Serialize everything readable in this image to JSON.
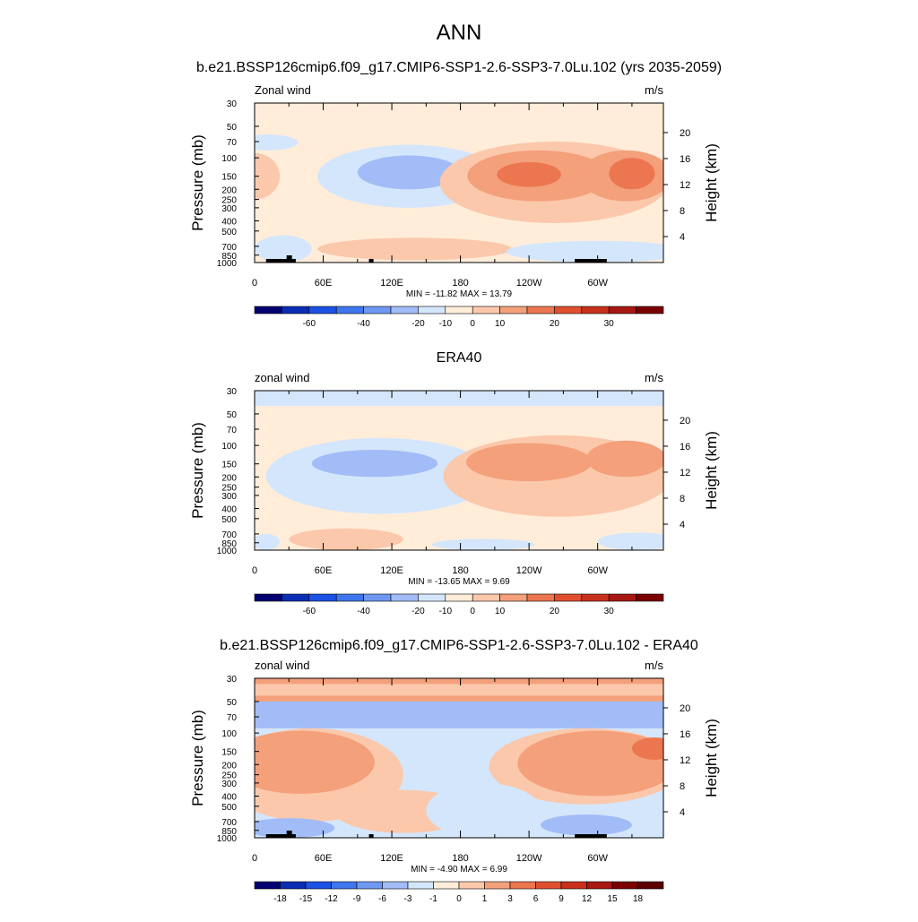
{
  "title": "ANN",
  "chart_data": [
    {
      "type": "heatmap",
      "title": "b.e21.BSSP126cmip6.f09_g17.CMIP6-SSP1-2.6-SSP3-7.0Lu.102 (yrs 2035-2059)",
      "left_label": "Zonal wind",
      "right_label": "m/s",
      "ylabel": "Pressure (mb)",
      "y2label": "Height (km)",
      "y_ticks": [
        "30",
        "50",
        "70",
        "100",
        "150",
        "200",
        "250",
        "300",
        "400",
        "500",
        "700",
        "850",
        "1000"
      ],
      "y2_ticks": [
        "20",
        "16",
        "12",
        "8",
        "4"
      ],
      "x_ticks": [
        "0",
        "60E",
        "120E",
        "180",
        "120W",
        "60W"
      ],
      "xlim": [
        0,
        357.5
      ],
      "stats": "MIN = -11.82  MAX =  13.79",
      "min": -11.82,
      "max": 13.79,
      "colorbar_labels": [
        "-60",
        "-40",
        "-20",
        "-10",
        "0",
        "10",
        "20",
        "30"
      ],
      "colorbar_colors": [
        "#03006f",
        "#0a2db4",
        "#1b52e4",
        "#3e76ee",
        "#6e98f2",
        "#a1bcf6",
        "#d4e6fb",
        "#ffedda",
        "#fbc8ab",
        "#f3a07b",
        "#ec7650",
        "#e0502f",
        "#c8301c",
        "#a81812",
        "#7a0000"
      ]
    },
    {
      "type": "heatmap",
      "title": "ERA40",
      "left_label": "zonal wind",
      "right_label": "m/s",
      "ylabel": "Pressure (mb)",
      "y2label": "Height (km)",
      "y_ticks": [
        "30",
        "50",
        "70",
        "100",
        "150",
        "200",
        "250",
        "300",
        "400",
        "500",
        "700",
        "850",
        "1000"
      ],
      "y2_ticks": [
        "20",
        "16",
        "12",
        "8",
        "4"
      ],
      "x_ticks": [
        "0",
        "60E",
        "120E",
        "180",
        "120W",
        "60W"
      ],
      "xlim": [
        0,
        357.5
      ],
      "stats": "MIN = -13.65  MAX =   9.69",
      "min": -13.65,
      "max": 9.69,
      "colorbar_labels": [
        "-60",
        "-40",
        "-20",
        "-10",
        "0",
        "10",
        "20",
        "30"
      ],
      "colorbar_colors": [
        "#03006f",
        "#0a2db4",
        "#1b52e4",
        "#3e76ee",
        "#6e98f2",
        "#a1bcf6",
        "#d4e6fb",
        "#ffedda",
        "#fbc8ab",
        "#f3a07b",
        "#ec7650",
        "#e0502f",
        "#c8301c",
        "#a81812",
        "#7a0000"
      ]
    },
    {
      "type": "heatmap",
      "title": "b.e21.BSSP126cmip6.f09_g17.CMIP6-SSP1-2.6-SSP3-7.0Lu.102 - ERA40",
      "left_label": "zonal wind",
      "right_label": "m/s",
      "ylabel": "Pressure (mb)",
      "y2label": "Height (km)",
      "y_ticks": [
        "30",
        "50",
        "70",
        "100",
        "150",
        "200",
        "250",
        "300",
        "400",
        "500",
        "700",
        "850",
        "1000"
      ],
      "y2_ticks": [
        "20",
        "16",
        "12",
        "8",
        "4"
      ],
      "x_ticks": [
        "0",
        "60E",
        "120E",
        "180",
        "120W",
        "60W"
      ],
      "xlim": [
        0,
        357.5
      ],
      "stats": "MIN =  -4.90  MAX =   6.99",
      "min": -4.9,
      "max": 6.99,
      "colorbar_labels": [
        "-18",
        "-15",
        "-12",
        "-9",
        "-6",
        "-3",
        "-1",
        "0",
        "1",
        "3",
        "6",
        "9",
        "12",
        "15",
        "18"
      ],
      "colorbar_colors": [
        "#03006f",
        "#0a2db4",
        "#1b52e4",
        "#3e76ee",
        "#6e98f2",
        "#a1bcf6",
        "#d4e6fb",
        "#ffedda",
        "#fbc8ab",
        "#f3a07b",
        "#ec7650",
        "#e0502f",
        "#c8301c",
        "#a81812",
        "#7a0000",
        "#5a0000"
      ]
    }
  ]
}
